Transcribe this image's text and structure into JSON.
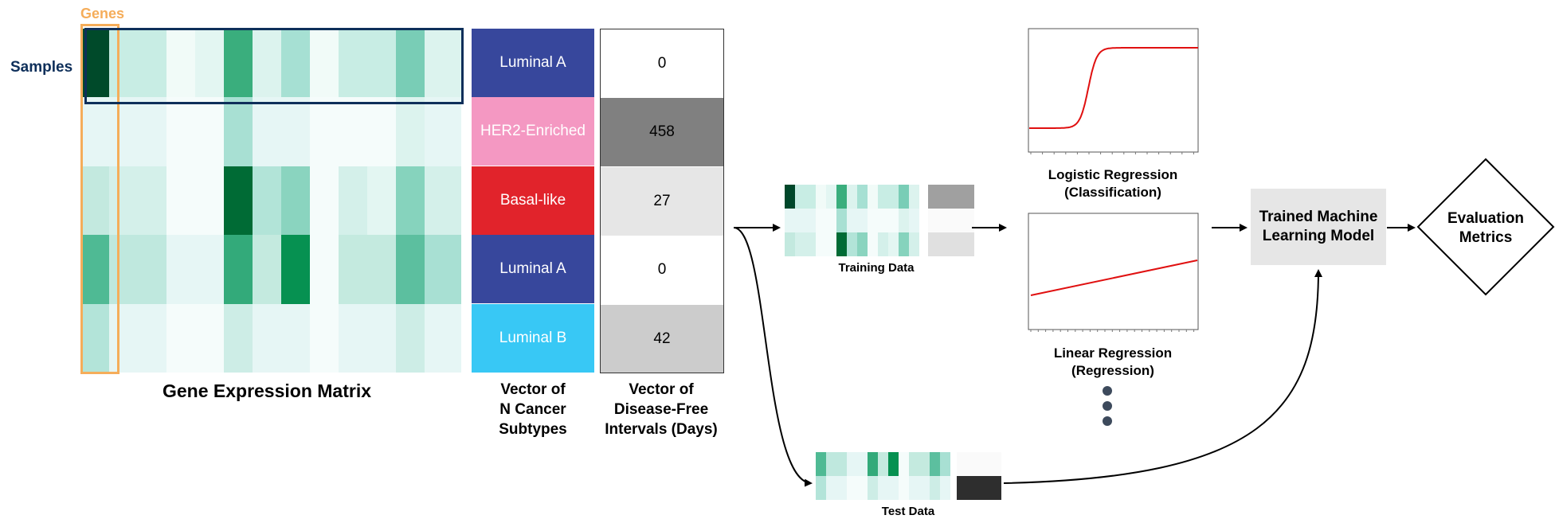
{
  "labels": {
    "genes": "Genes",
    "samples": "Samples",
    "matrix_title": "Gene Expression Matrix",
    "subtypes_title": [
      "Vector of",
      "N Cancer",
      "Subtypes"
    ],
    "dfi_title": [
      "Vector of",
      "Disease-Free",
      "Intervals (Days)"
    ],
    "training_data": "Training Data",
    "test_data": "Test Data",
    "logistic_title": [
      "Logistic Regression",
      "(Classification)"
    ],
    "linear_title": [
      "Linear Regression",
      "(Regression)"
    ],
    "model_box": [
      "Trained Machine",
      "Learning Model"
    ],
    "metrics_box": [
      "Evaluation",
      "Metrics"
    ]
  },
  "colors": {
    "genes_outline": "#f5ad5a",
    "samples_outline": "#0e2f5a",
    "curve": "#e01010"
  },
  "heatmap": {
    "rows": [
      [
        "#004a2a",
        "#c8ede4",
        "#c8ede4",
        "#f1fbf8",
        "#e3f6f2",
        "#3aae7d",
        "#dcf3ee",
        "#a6e0d3",
        "#f1fbf8",
        "#c8ede4",
        "#c8ede4",
        "#79cdb6",
        "#dcf3ee"
      ],
      [
        "#e6f6f5",
        "#e6f6f5",
        "#e6f6f5",
        "#f5fcfb",
        "#f5fcfb",
        "#a8e0d3",
        "#e6f6f5",
        "#e6f6f5",
        "#f5fcfb",
        "#f5fcfb",
        "#f5fcfb",
        "#dcf3ee",
        "#e6f6f5"
      ],
      [
        "#c3e9df",
        "#d4f0ea",
        "#d4f0ea",
        "#f5fcfb",
        "#f5fcfb",
        "#006b35",
        "#b2e4d8",
        "#8ad4bf",
        "#f5fcfb",
        "#d4f0ea",
        "#e3f6f2",
        "#86d3bd",
        "#d4f0ea"
      ],
      [
        "#4fba94",
        "#bfe8de",
        "#bfe8de",
        "#e6f6f5",
        "#e6f6f5",
        "#33aa7a",
        "#c4eadf",
        "#069151",
        "#f5fcfb",
        "#c4eadf",
        "#c4eadf",
        "#5cbf9f",
        "#a8e0d3"
      ],
      [
        "#b3e4d9",
        "#e6f6f5",
        "#e6f6f5",
        "#f5fcfb",
        "#f5fcfb",
        "#cdede6",
        "#e6f6f5",
        "#e6f6f5",
        "#f5fcfb",
        "#e6f6f5",
        "#e6f6f5",
        "#cdede6",
        "#e6f6f5"
      ]
    ]
  },
  "subtypes": [
    {
      "label": "Luminal A",
      "color": "#37479c"
    },
    {
      "label": "HER2-Enriched",
      "color": "#f498c2"
    },
    {
      "label": "Basal-like",
      "color": "#e1232b"
    },
    {
      "label": "Luminal A",
      "color": "#37479c"
    },
    {
      "label": "Luminal B",
      "color": "#38c8f5"
    }
  ],
  "dfi": [
    {
      "value": "0",
      "color": "#ffffff"
    },
    {
      "value": "458",
      "color": "#808080"
    },
    {
      "value": "27",
      "color": "#e6e6e6"
    },
    {
      "value": "0",
      "color": "#ffffff"
    },
    {
      "value": "42",
      "color": "#cccccc"
    }
  ],
  "training_thumb": {
    "rows": [
      [
        "#00472a",
        "#c8ede4",
        "#c8ede4",
        "#f1fbf8",
        "#e3f6f2",
        "#3aae7d",
        "#dcf3ee",
        "#a6e0d3",
        "#f1fbf8",
        "#c8ede4",
        "#c8ede4",
        "#79cdb6",
        "#dcf3ee"
      ],
      [
        "#e6f6f5",
        "#e6f6f5",
        "#e6f6f5",
        "#f5fcfb",
        "#f5fcfb",
        "#a8e0d3",
        "#e6f6f5",
        "#e6f6f5",
        "#f5fcfb",
        "#f5fcfb",
        "#f5fcfb",
        "#dcf3ee",
        "#e6f6f5"
      ],
      [
        "#c3e9df",
        "#d4f0ea",
        "#d4f0ea",
        "#f5fcfb",
        "#f5fcfb",
        "#006b35",
        "#b2e4d8",
        "#8ad4bf",
        "#f5fcfb",
        "#d4f0ea",
        "#e3f6f2",
        "#86d3bd",
        "#d4f0ea"
      ]
    ],
    "targets": [
      "#a0a0a0",
      "#fafafa",
      "#e0e0e0"
    ]
  },
  "test_thumb": {
    "rows": [
      [
        "#4fba94",
        "#bfe8de",
        "#bfe8de",
        "#e6f6f5",
        "#e6f6f5",
        "#33aa7a",
        "#c4eadf",
        "#069151",
        "#f5fcfb",
        "#c4eadf",
        "#c4eadf",
        "#5cbf9f",
        "#a8e0d3"
      ],
      [
        "#b3e4d9",
        "#e6f6f5",
        "#e6f6f5",
        "#f5fcfb",
        "#f5fcfb",
        "#cdede6",
        "#e6f6f5",
        "#e6f6f5",
        "#f5fcfb",
        "#e6f6f5",
        "#e6f6f5",
        "#cdede6",
        "#e6f6f5"
      ]
    ],
    "targets": [
      "#fafafa",
      "#2e2e2e"
    ]
  }
}
